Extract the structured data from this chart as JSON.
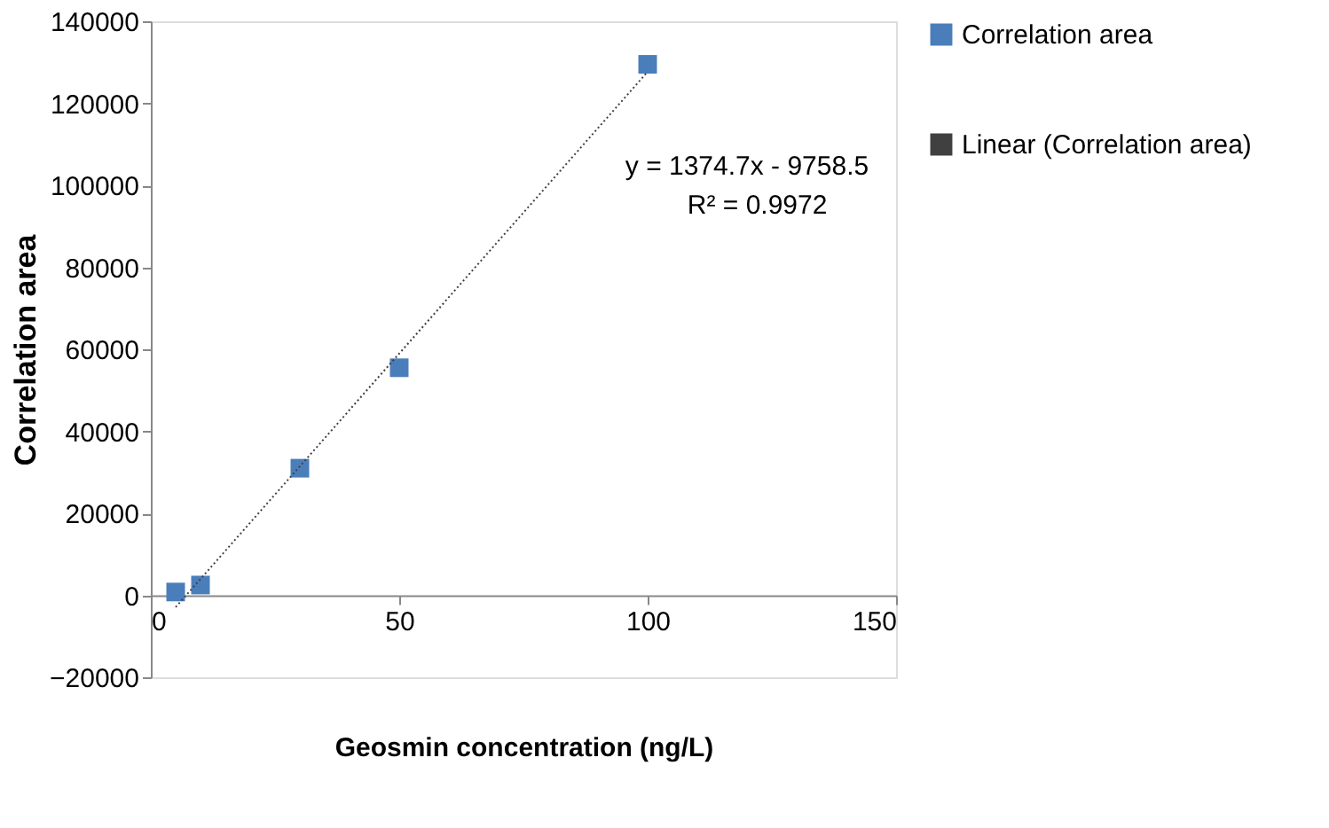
{
  "chart_data": {
    "type": "scatter",
    "xlabel": "Geosmin concentration (ng/L)",
    "ylabel": "Correlation area",
    "series": [
      {
        "name": "Correlation area",
        "color": "#4a7ebb",
        "marker": "square",
        "x": [
          5,
          10,
          30,
          50,
          100
        ],
        "values": [
          800,
          2500,
          31000,
          55500,
          129500
        ]
      },
      {
        "name": "Linear (Correlation area)",
        "type": "line",
        "color": "#404040",
        "line_style": "dotted",
        "marker": "none",
        "x": [
          5,
          100
        ],
        "values": [
          -2900,
          127700
        ]
      }
    ],
    "annotations": [
      "y = 1374.7x - 9758.5",
      "R² = 0.9972"
    ],
    "xlim": [
      0,
      150
    ],
    "xticks": [
      0,
      50,
      100,
      150
    ],
    "ylim": [
      -20000,
      140000
    ],
    "yticks": [
      -20000,
      0,
      20000,
      40000,
      60000,
      80000,
      100000,
      120000,
      140000
    ],
    "grid": false,
    "legend": "right"
  }
}
